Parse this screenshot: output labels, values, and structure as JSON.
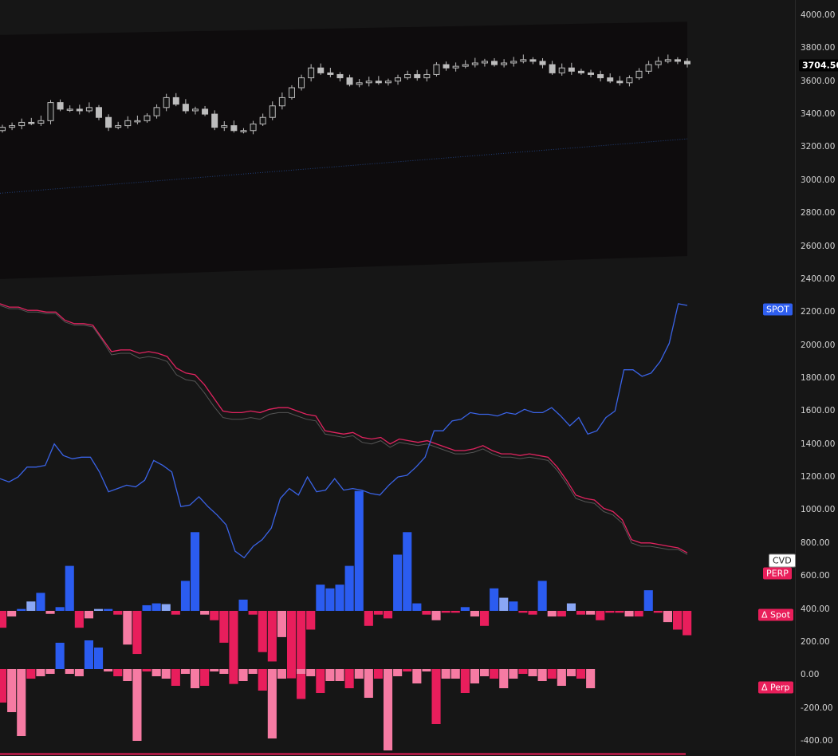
{
  "price_axis": {
    "ticks": [
      "4000.00",
      "3800.00",
      "3600.00",
      "3400.00",
      "3200.00",
      "3000.00",
      "2800.00",
      "2600.00",
      "2400.00",
      "2200.00",
      "2000.00",
      "1800.00",
      "1600.00",
      "1400.00",
      "1200.00",
      "1000.00",
      "800.00",
      "600.00",
      "400.00",
      "200.00",
      "0.00",
      "-200.00",
      "-400.00"
    ],
    "current_price": "3704.50"
  },
  "tags": {
    "spot": "SPOT",
    "cvd": "CVD",
    "perp": "PERP",
    "delta_spot": "Δ Spot",
    "delta_perp": "Δ Perp"
  },
  "colors": {
    "background": "#161616",
    "band_fill": "#0e0c0d",
    "candle": "#bdbdbd",
    "spot_line": "#3a63e6",
    "perp_line": "#e0235f",
    "gray_line": "#555555",
    "bar_blue": "#2b5cf0",
    "bar_blue_light": "#8aa7f5",
    "bar_red": "#e81e5c",
    "bar_pink": "#f67ba3",
    "ma_line": "#22407a"
  },
  "chart_data": [
    {
      "type": "candlestick",
      "title": "",
      "ylim": [
        2400,
        4000
      ],
      "price_range_hint": [
        3270,
        3780
      ],
      "last_close": 3704.5,
      "candle_count": 72,
      "band_top": [
        3880,
        3960
      ],
      "band_bottom": [
        2400,
        2540
      ],
      "ma_line": [
        2920,
        3250
      ]
    },
    {
      "type": "line",
      "series": [
        {
          "name": "SPOT",
          "values": [
            1190,
            1170,
            1200,
            1260,
            1260,
            1270,
            1400,
            1330,
            1310,
            1320,
            1320,
            1230,
            1110,
            1130,
            1150,
            1140,
            1180,
            1300,
            1270,
            1230,
            1020,
            1030,
            1080,
            1020,
            970,
            910,
            750,
            710,
            780,
            820,
            890,
            1070,
            1130,
            1090,
            1200,
            1110,
            1120,
            1190,
            1120,
            1130,
            1120,
            1100,
            1090,
            1150,
            1200,
            1210,
            1260,
            1320,
            1480,
            1480,
            1540,
            1550,
            1590,
            1580,
            1580,
            1570,
            1590,
            1580,
            1610,
            1590,
            1590,
            1620,
            1570,
            1510,
            1560,
            1460,
            1480,
            1560,
            1600,
            1850,
            1850,
            1810,
            1830,
            1900,
            2010,
            2250,
            2240
          ]
        },
        {
          "name": "PERP",
          "values": [
            2250,
            2230,
            2230,
            2210,
            2210,
            2200,
            2200,
            2150,
            2130,
            2130,
            2120,
            2040,
            1960,
            1970,
            1970,
            1950,
            1960,
            1950,
            1930,
            1860,
            1830,
            1820,
            1760,
            1680,
            1600,
            1590,
            1590,
            1600,
            1590,
            1610,
            1620,
            1620,
            1600,
            1580,
            1570,
            1480,
            1470,
            1460,
            1470,
            1440,
            1430,
            1440,
            1400,
            1430,
            1420,
            1410,
            1420,
            1400,
            1380,
            1360,
            1360,
            1370,
            1390,
            1360,
            1340,
            1340,
            1330,
            1340,
            1330,
            1320,
            1260,
            1180,
            1090,
            1070,
            1060,
            1010,
            990,
            940,
            820,
            800,
            800,
            790,
            780,
            770,
            740
          ]
        },
        {
          "name": "",
          "values": [
            2240,
            2220,
            2220,
            2200,
            2200,
            2190,
            2190,
            2140,
            2120,
            2120,
            2110,
            2030,
            1940,
            1950,
            1950,
            1920,
            1930,
            1920,
            1900,
            1820,
            1790,
            1780,
            1710,
            1630,
            1560,
            1550,
            1550,
            1560,
            1550,
            1580,
            1590,
            1590,
            1570,
            1550,
            1540,
            1460,
            1450,
            1440,
            1450,
            1410,
            1400,
            1420,
            1380,
            1410,
            1400,
            1390,
            1400,
            1380,
            1360,
            1340,
            1340,
            1350,
            1370,
            1340,
            1320,
            1320,
            1310,
            1320,
            1310,
            1300,
            1240,
            1160,
            1070,
            1050,
            1040,
            990,
            970,
            920,
            800,
            780,
            780,
            770,
            760,
            760,
            730
          ]
        }
      ]
    },
    {
      "type": "bar",
      "name": "Δ Spot",
      "values": [
        -45,
        -15,
        5,
        25,
        48,
        -8,
        10,
        120,
        -45,
        -20,
        5,
        5,
        -10,
        -90,
        -115,
        15,
        20,
        18,
        -10,
        80,
        210,
        -10,
        -25,
        -85,
        -195,
        30,
        -10,
        -110,
        -135,
        -70,
        -180,
        -235,
        -50,
        70,
        60,
        70,
        120,
        320,
        -40,
        -10,
        -20,
        150,
        210,
        20,
        -10,
        -25,
        -5,
        -5,
        10,
        -15,
        -40,
        60,
        35,
        25,
        -5,
        -10,
        80,
        -15,
        -15,
        20,
        -10,
        -10,
        -25,
        -5,
        -5,
        -15,
        -15,
        55,
        -5,
        -30,
        -50,
        -65,
        -70,
        -90,
        -140,
        -20,
        -15,
        -10,
        55,
        -10,
        -15,
        60,
        45,
        -5,
        -15,
        -25,
        -150,
        -5,
        -15,
        -20,
        -35,
        -10,
        -40,
        -35,
        -5,
        -10,
        -20,
        -25,
        -10,
        -45,
        -145,
        -20,
        -5,
        -10,
        -15,
        -50,
        -25,
        -25,
        -40,
        -20,
        -60,
        -20,
        -170,
        -15,
        -5,
        -30,
        -5,
        -115,
        -20,
        -20,
        -50,
        -30,
        -15,
        -20,
        -40,
        -20,
        -10,
        -15,
        -25,
        -20,
        -35,
        -15,
        -20,
        -40
      ]
    }
  ]
}
